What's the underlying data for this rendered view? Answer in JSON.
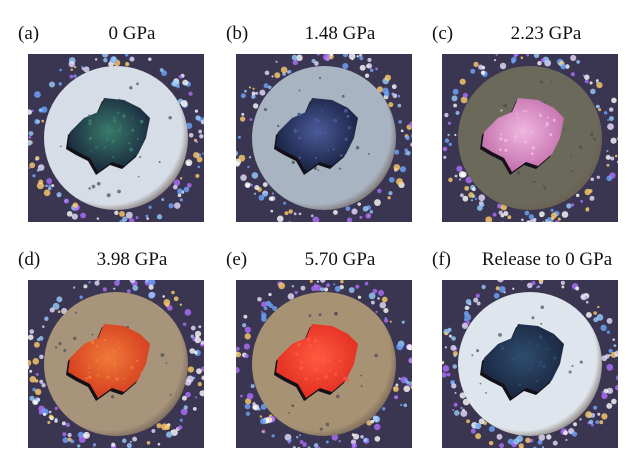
{
  "panels": [
    {
      "letter": "(a)",
      "caption": "0 GPa",
      "sample_color": "#16203a",
      "gasket_color": "#d6dde6",
      "sample_highlight": "#3a7a6a"
    },
    {
      "letter": "(b)",
      "caption": "1.48 GPa",
      "sample_color": "#141d38",
      "gasket_color": "#a9b4c3",
      "sample_highlight": "#4a5a9a"
    },
    {
      "letter": "(c)",
      "caption": "2.23 GPa",
      "sample_color": "#c06aa8",
      "gasket_color": "#6b6a5a",
      "sample_highlight": "#f0b6e0"
    },
    {
      "letter": "(d)",
      "caption": "3.98 GPa",
      "sample_color": "#d2381c",
      "gasket_color": "#a7947a",
      "sample_highlight": "#f07a3a"
    },
    {
      "letter": "(e)",
      "caption": "5.70 GPa",
      "sample_color": "#e02a1e",
      "gasket_color": "#a89274",
      "sample_highlight": "#ff5a40"
    },
    {
      "letter": "(f)",
      "caption": "Release to 0 GPa",
      "sample_color": "#18223c",
      "gasket_color": "#dfe5ec",
      "sample_highlight": "#2e4e6e"
    }
  ]
}
